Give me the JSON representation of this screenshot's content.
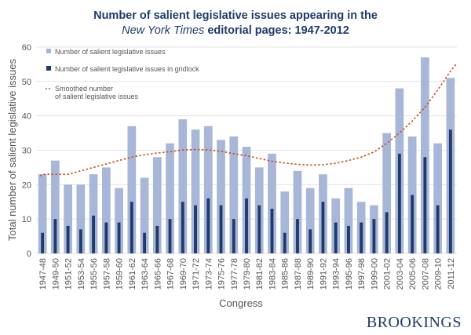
{
  "title_line1": "Number of salient legislative issues appearing in the",
  "title_line2_italic": "New York Times",
  "title_line2_rest": " editorial pages: 1947-2012",
  "brand": "BROOKINGS",
  "colors": {
    "total": "#a8b7d8",
    "gridlock": "#1f3b6b",
    "smoothed": "#c8501e",
    "grid": "#dddddd"
  },
  "chart_data": {
    "type": "bar",
    "xlabel": "Congress",
    "ylabel": "Total number of salient legislative issues",
    "ylim": [
      0,
      60
    ],
    "yticks": [
      0,
      10,
      20,
      30,
      40,
      50,
      60
    ],
    "grid": true,
    "legend_position": "top-left",
    "categories": [
      "1947-48",
      "1949-50",
      "1951-52",
      "1953-54",
      "1955-56",
      "1957-58",
      "1959-60",
      "1961-62",
      "1963-64",
      "1965-66",
      "1967-68",
      "1969-70",
      "1971-72",
      "1973-74",
      "1975-76",
      "1977-78",
      "1979-80",
      "1981-82",
      "1983-84",
      "1985-86",
      "1987-88",
      "1989-90",
      "1991-92",
      "1993-94",
      "1995-96",
      "1997-98",
      "1999-00",
      "2001-02",
      "2003-04",
      "2005-06",
      "2007-08",
      "2009-10",
      "2011-12"
    ],
    "series": [
      {
        "name": "Number of salient legislative issues",
        "kind": "bar",
        "values": [
          23,
          27,
          20,
          20,
          23,
          25,
          19,
          37,
          22,
          28,
          32,
          39,
          36,
          37,
          33,
          34,
          31,
          25,
          29,
          18,
          24,
          19,
          23,
          16,
          19,
          15,
          14,
          35,
          48,
          34,
          57,
          32,
          51
        ]
      },
      {
        "name": "Number of salient legislative issues in gridlock",
        "kind": "bar",
        "values": [
          6,
          10,
          8,
          7,
          11,
          9,
          9,
          15,
          6,
          8,
          10,
          15,
          14,
          16,
          14,
          10,
          16,
          14,
          13,
          6,
          10,
          7,
          15,
          9,
          8,
          9,
          10,
          12,
          29,
          17,
          28,
          14,
          36
        ]
      },
      {
        "name": "Smoothed number of salient legislative issues",
        "legend_lines": [
          "Smoothed number",
          "of salient legislative issues"
        ],
        "kind": "line",
        "values": [
          23,
          23,
          23,
          24,
          25,
          26,
          27,
          28,
          28.7,
          29.2,
          29.6,
          30.1,
          30.2,
          30.1,
          29.7,
          29,
          28.4,
          27.6,
          26.8,
          26.3,
          25.9,
          25.7,
          25.8,
          26.2,
          27,
          28,
          29.5,
          32,
          35,
          38.5,
          42.5,
          47.5,
          53
        ]
      }
    ]
  }
}
